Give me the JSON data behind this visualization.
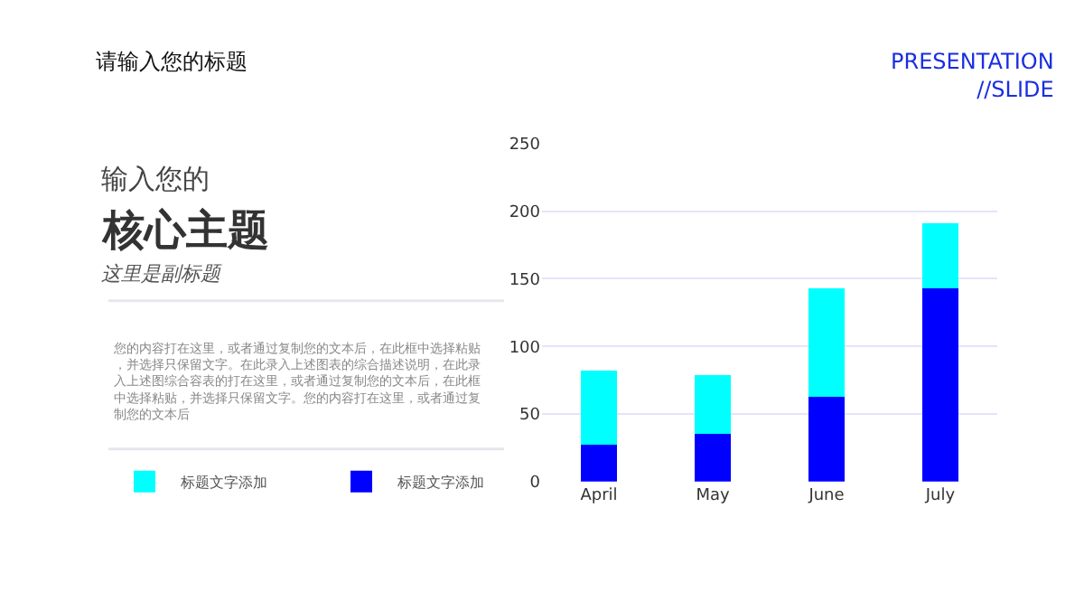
{
  "chart_data": {
    "type": "bar",
    "stacked": true,
    "title": "请输入您的标题",
    "subtitle": "这里是副标题",
    "annotations": [
      "PRESENTATION\n//SLIDE",
      "输入您的",
      "核心主题",
      "您的内容打在这里，或者通过复制您的文本后，在此框中选择粘贴，并选择只保留文字。在此录入上述图表的综合描述说明，在此录入上述图综合容表的打在这里，或者通过复制您的文本后，在此框中选择粘贴，并选择只保留文字。您的内容打在这里，或者通过复制您的文本后"
    ],
    "categories": [
      "April",
      "May",
      "June",
      "July"
    ],
    "series": [
      {
        "name": "标题文字添加",
        "color": "#0000ff",
        "values": [
          27,
          35,
          63,
          143
        ]
      },
      {
        "name": "标题文字添加",
        "color": "#00ffff",
        "values": [
          55,
          44,
          80,
          48
        ]
      }
    ],
    "ylim": [
      0,
      250
    ],
    "yticks": [
      0,
      50,
      100,
      150,
      200,
      250
    ],
    "grid": "y",
    "legend": "left"
  }
}
